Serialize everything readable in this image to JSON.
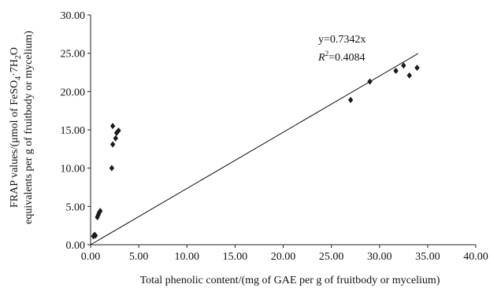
{
  "chart_data": {
    "type": "scatter",
    "title": "",
    "xlabel": "Total phenolic content/(mg of GAE per g of fruitbody or mycelium)",
    "ylabel_line1": "FRAP values/(μmol of FeSO",
    "ylabel_line1_sub1": "4",
    "ylabel_line1_mid": "·7H",
    "ylabel_line1_sub2": "2",
    "ylabel_line1_end": "O",
    "ylabel_line2": "equivalents per g of fruitbody or mycelium)",
    "xlim": [
      0,
      40
    ],
    "ylim": [
      0,
      30
    ],
    "x_ticks": [
      "0.00",
      "5.00",
      "10.00",
      "15.00",
      "20.00",
      "25.00",
      "30.00",
      "35.00",
      "40.00"
    ],
    "y_ticks": [
      "0.00",
      "5.00",
      "10.00",
      "15.00",
      "20.00",
      "25.00",
      "30.00"
    ],
    "grid": false,
    "marker_color": "#1a1a1a",
    "points": [
      {
        "x": 0.3,
        "y": 1.1
      },
      {
        "x": 0.4,
        "y": 1.3
      },
      {
        "x": 0.5,
        "y": 1.2
      },
      {
        "x": 0.7,
        "y": 3.6
      },
      {
        "x": 0.8,
        "y": 3.9
      },
      {
        "x": 0.9,
        "y": 4.2
      },
      {
        "x": 1.0,
        "y": 4.4
      },
      {
        "x": 2.2,
        "y": 10.0
      },
      {
        "x": 2.3,
        "y": 13.1
      },
      {
        "x": 2.3,
        "y": 15.5
      },
      {
        "x": 2.6,
        "y": 13.9
      },
      {
        "x": 2.7,
        "y": 14.6
      },
      {
        "x": 2.9,
        "y": 14.9
      },
      {
        "x": 27.0,
        "y": 18.9
      },
      {
        "x": 29.0,
        "y": 21.3
      },
      {
        "x": 31.7,
        "y": 22.7
      },
      {
        "x": 32.5,
        "y": 23.4
      },
      {
        "x": 33.1,
        "y": 22.1
      },
      {
        "x": 33.9,
        "y": 23.1
      }
    ],
    "trendline": {
      "slope": 0.7342,
      "x_range": [
        0,
        34
      ]
    },
    "equation_text": "y=0.7342x",
    "r2_prefix": "R",
    "r2_sup": "2",
    "r2_value": "=0.4084"
  }
}
